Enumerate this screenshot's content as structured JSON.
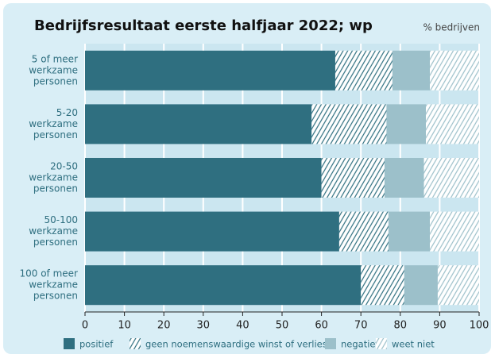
{
  "chart_data": {
    "type": "stacked-bar-horizontal",
    "title": "Bedrijfsresultaat eerste halfjaar 2022; wp",
    "unit_label": "% bedrijven",
    "categories": [
      [
        "5 of meer",
        "werkzame",
        "personen"
      ],
      [
        "5-20",
        "werkzame",
        "personen"
      ],
      [
        "20-50",
        "werkzame",
        "personen"
      ],
      [
        "50-100",
        "werkzame",
        "personen"
      ],
      [
        "100 of meer",
        "werkzame",
        "personen"
      ]
    ],
    "series": [
      {
        "name": "positief",
        "color": "#2f6f80",
        "hatch": false,
        "values": [
          63.5,
          57.5,
          60,
          64.5,
          70
        ]
      },
      {
        "name": "geen noemenswaardige winst of verlies",
        "color": "#2f6f80",
        "hatch": true,
        "values": [
          14.5,
          19,
          16,
          12.5,
          11
        ]
      },
      {
        "name": "negatief",
        "color": "#9cc0ca",
        "hatch": false,
        "values": [
          9.5,
          10,
          10,
          10.5,
          8.5
        ]
      },
      {
        "name": "weet niet",
        "color": "#9cc0ca",
        "hatch": true,
        "values": [
          12.5,
          13.5,
          14,
          12.5,
          10.5
        ]
      }
    ],
    "xlim": [
      0,
      100
    ],
    "xticks": [
      0,
      10,
      20,
      30,
      40,
      50,
      60,
      70,
      80,
      90,
      100
    ],
    "grid": true
  }
}
